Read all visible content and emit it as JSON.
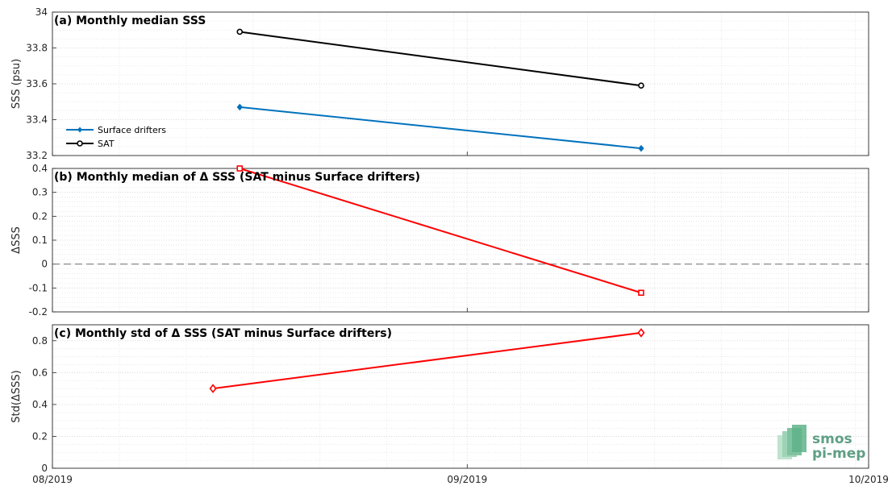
{
  "chart_data": [
    {
      "type": "line",
      "title": "(a) Monthly median SSS",
      "ylabel": "SSS (psu)",
      "ylim": [
        33.2,
        34
      ],
      "yticks": [
        "33.2",
        "33.4",
        "33.6",
        "33.8",
        "34"
      ],
      "x_dates": [
        "2019-08-15",
        "2019-09-14"
      ],
      "legend_position": "lower-left",
      "series": [
        {
          "name": "Surface drifters",
          "color": "#0072bd",
          "marker": "diamond-filled",
          "values": [
            33.47,
            33.24
          ]
        },
        {
          "name": "SAT",
          "color": "#000000",
          "marker": "circle-open",
          "values": [
            33.89,
            33.59
          ]
        }
      ],
      "grid": true
    },
    {
      "type": "line",
      "title": "(b) Monthly median of Δ SSS (SAT minus Surface drifters)",
      "ylabel": "ΔSSS",
      "ylim": [
        -0.2,
        0.4
      ],
      "yticks": [
        "-0.2",
        "-0.1",
        "0",
        "0.1",
        "0.2",
        "0.3",
        "0.4"
      ],
      "x_dates": [
        "2019-08-15",
        "2019-09-14"
      ],
      "reference_line": 0,
      "series": [
        {
          "color": "#ff0000",
          "marker": "square-open",
          "values": [
            0.4,
            -0.12
          ]
        }
      ],
      "grid": true
    },
    {
      "type": "line",
      "title": "(c) Monthly std of Δ SSS (SAT minus Surface drifters)",
      "ylabel": "Std(ΔSSS)",
      "ylim": [
        0,
        0.9
      ],
      "yticks": [
        "0",
        "0.2",
        "0.4",
        "0.6",
        "0.8"
      ],
      "x_dates": [
        "2019-08-13",
        "2019-09-14"
      ],
      "series": [
        {
          "color": "#ff0000",
          "marker": "diamond-open",
          "values": [
            0.5,
            0.85
          ]
        }
      ],
      "grid": true
    }
  ],
  "x_axis": {
    "range": [
      "2019-08-01",
      "2019-10-01"
    ],
    "ticks": [
      {
        "date": "2019-08-01",
        "label": "08/2019"
      },
      {
        "date": "2019-09-01",
        "label": "09/2019"
      },
      {
        "date": "2019-10-01",
        "label": "10/2019"
      }
    ]
  },
  "logo": {
    "line1": "smos",
    "line2": "pi-mep",
    "icon": "smos-layered-logo-icon"
  }
}
